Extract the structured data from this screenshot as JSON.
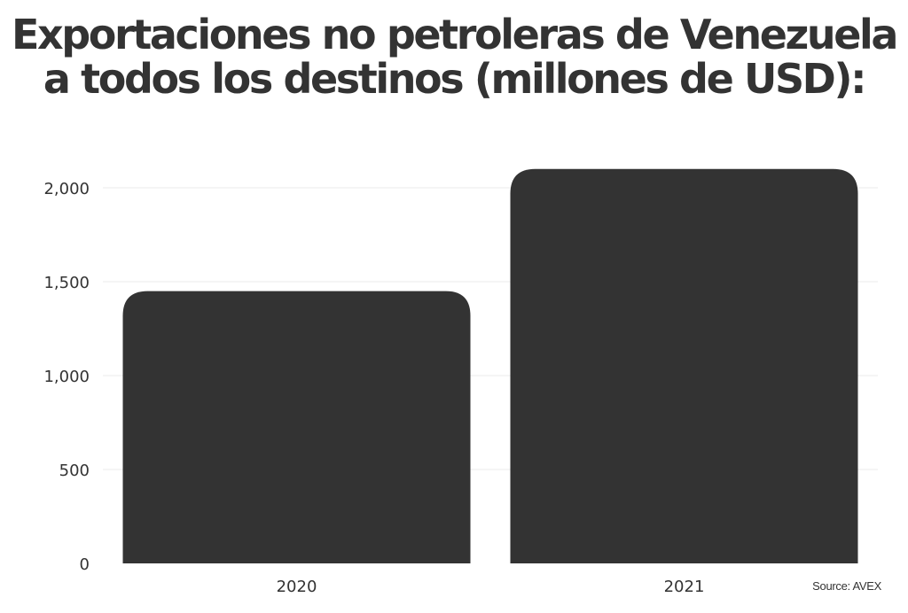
{
  "title": "Exportaciones no petroleras de Venezuela a todos los destinos (millones de USD):",
  "source": "Source: AVEX",
  "colors": {
    "bar": "#333333",
    "grid": "#ebebeb",
    "text": "#333333",
    "background": "#ffffff"
  },
  "chart_data": {
    "type": "bar",
    "title": "Exportaciones no petroleras de Venezuela a todos los destinos (millones de USD):",
    "categories": [
      "2020",
      "2021"
    ],
    "values": [
      1450,
      2100
    ],
    "xlabel": "",
    "ylabel": "",
    "ylim": [
      0,
      2000
    ],
    "y_ticks": [
      0,
      500,
      1000,
      1500,
      2000
    ],
    "y_tick_labels": [
      "0",
      "500",
      "1,000",
      "1,500",
      "2,000"
    ],
    "grid": true,
    "legend": "none"
  }
}
